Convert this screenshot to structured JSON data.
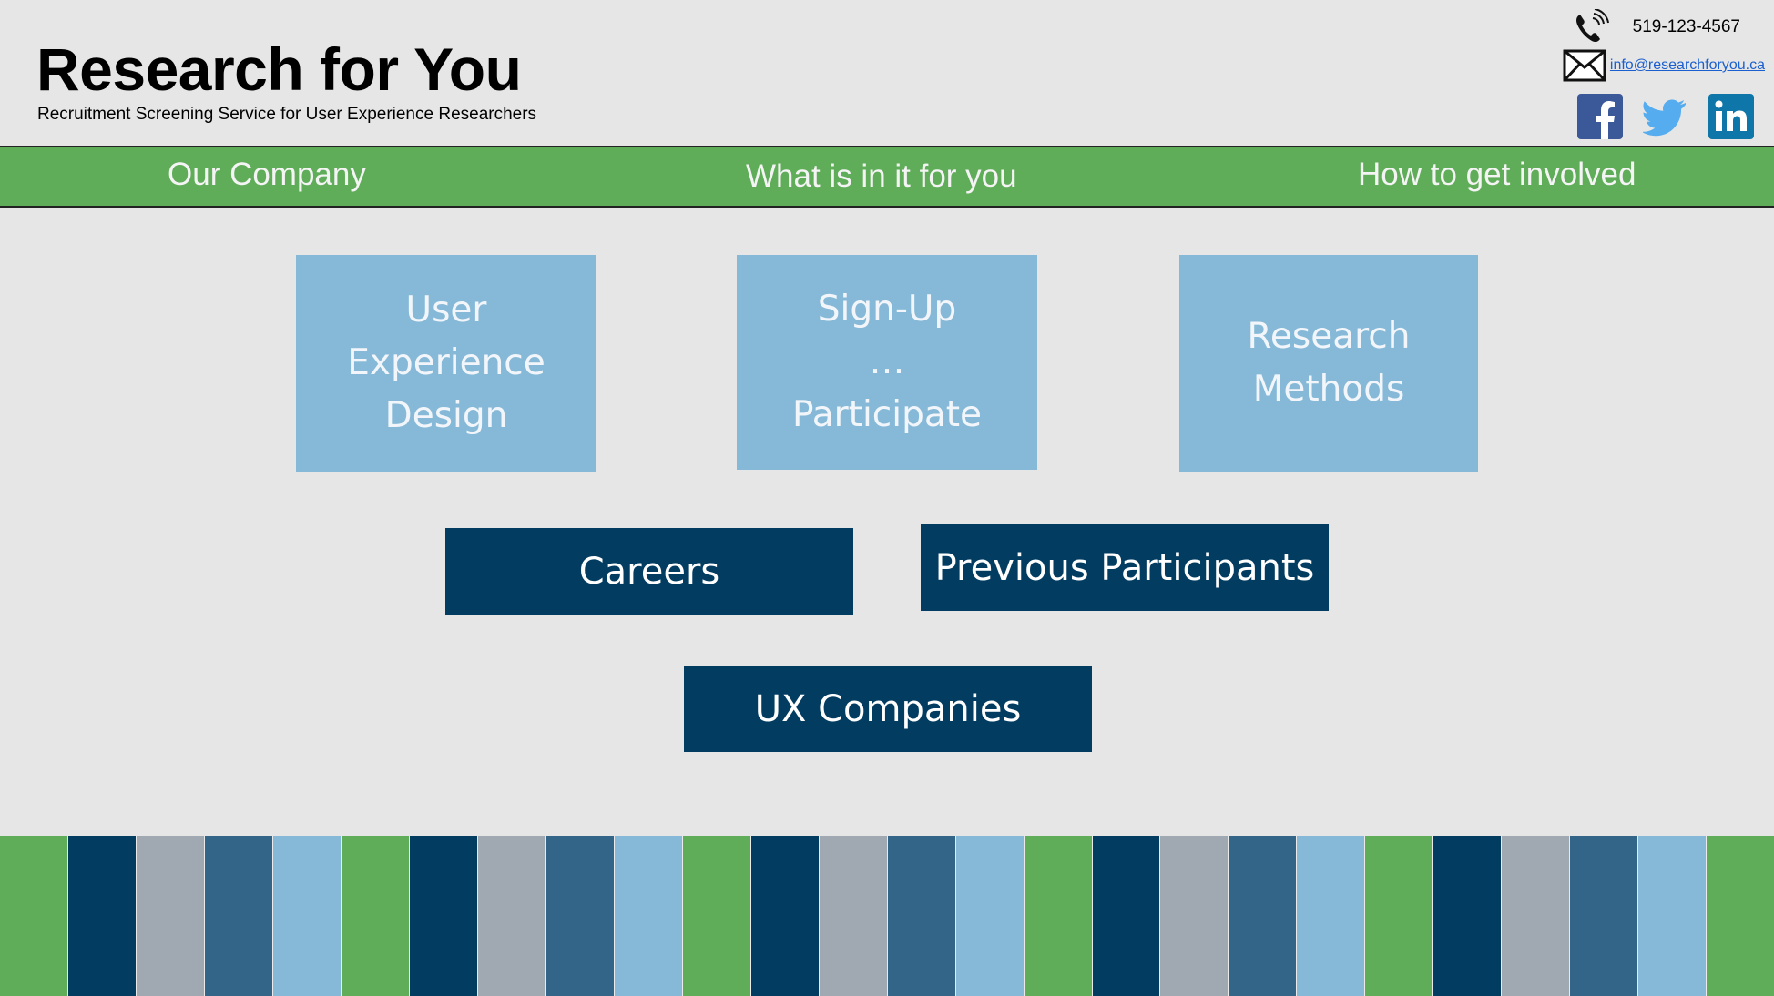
{
  "header": {
    "title": "Research for You",
    "subtitle": "Recruitment Screening Service for User Experience Researchers",
    "phone": "519-123-4567",
    "email": "info@researchforyou.ca",
    "icons": [
      "phone-icon",
      "mail-icon",
      "facebook-icon",
      "twitter-icon",
      "linkedin-icon"
    ]
  },
  "nav": {
    "items": [
      {
        "label": "Our Company"
      },
      {
        "label": "What is in it for you"
      },
      {
        "label": "How to get involved"
      }
    ]
  },
  "tiles": [
    {
      "label": "User\nExperience\nDesign"
    },
    {
      "label": "Sign-Up\n…\nParticipate"
    },
    {
      "label": "Research\nMethods"
    }
  ],
  "buttons": {
    "careers": "Careers",
    "previous_participants": "Previous Participants",
    "ux_companies": "UX Companies"
  },
  "colors": {
    "green": "#5fac59",
    "navy": "#023c61",
    "light_blue": "#86b9d7",
    "gray": "#a0a9b2",
    "steel_blue": "#336588",
    "background": "#e6e6e6"
  },
  "footer_stripes": [
    "green",
    "navy",
    "gray",
    "steel_blue",
    "light_blue",
    "green",
    "navy",
    "gray",
    "steel_blue",
    "light_blue",
    "green",
    "navy",
    "gray",
    "steel_blue",
    "light_blue",
    "green",
    "navy",
    "gray",
    "steel_blue",
    "light_blue",
    "green",
    "navy",
    "gray",
    "steel_blue",
    "light_blue",
    "green"
  ]
}
